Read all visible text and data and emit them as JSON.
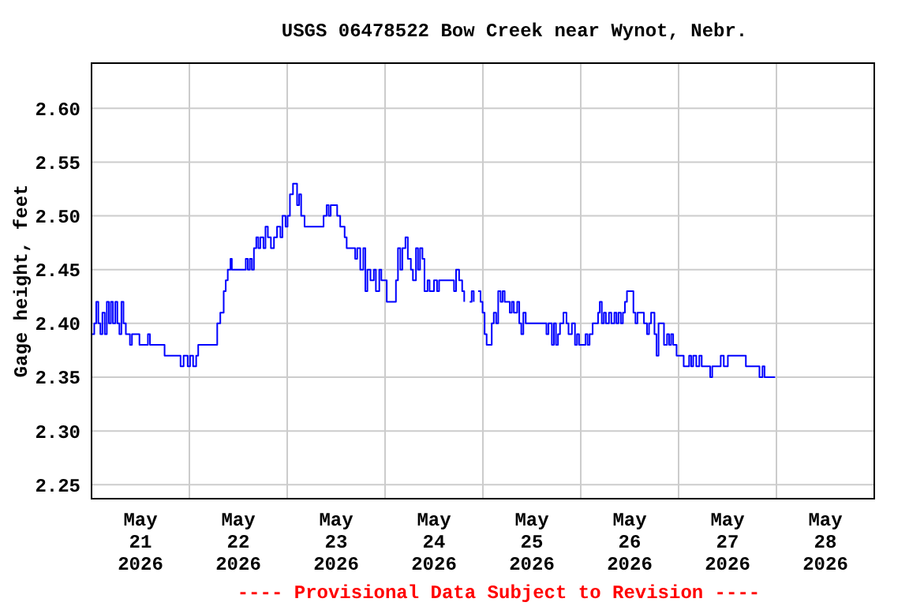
{
  "chart_data": {
    "type": "step",
    "title": "USGS 06478522 Bow Creek near Wynot, Nebr.",
    "ylabel": "Gage height, feet",
    "annotations": [
      "---- Provisional Data Subject to Revision ----"
    ],
    "xlim": [
      "2026-05-21T00:00",
      "2026-05-29T00:00"
    ],
    "xticks": [
      {
        "value": "2026-05-21T12:00",
        "label": "May\n21\n2026"
      },
      {
        "value": "2026-05-22T12:00",
        "label": "May\n22\n2026"
      },
      {
        "value": "2026-05-23T12:00",
        "label": "May\n23\n2026"
      },
      {
        "value": "2026-05-24T12:00",
        "label": "May\n24\n2026"
      },
      {
        "value": "2026-05-25T12:00",
        "label": "May\n25\n2026"
      },
      {
        "value": "2026-05-26T12:00",
        "label": "May\n26\n2026"
      },
      {
        "value": "2026-05-27T12:00",
        "label": "May\n27\n2026"
      },
      {
        "value": "2026-05-28T12:00",
        "label": "May\n28\n2026"
      },
      {
        "value": "2026-05-22T00:00",
        "label": null
      },
      {
        "value": "2026-05-23T00:00",
        "label": null
      },
      {
        "value": "2026-05-24T00:00",
        "label": null
      },
      {
        "value": "2026-05-25T00:00",
        "label": null
      },
      {
        "value": "2026-05-26T00:00",
        "label": null
      },
      {
        "value": "2026-05-27T00:00",
        "label": null
      },
      {
        "value": "2026-05-28T00:00",
        "label": null
      }
    ],
    "ylim": [
      2.237,
      2.642
    ],
    "yticks": [
      {
        "value": 2.25,
        "label": "2.25"
      },
      {
        "value": 2.3,
        "label": "2.30"
      },
      {
        "value": 2.35,
        "label": "2.35"
      },
      {
        "value": 2.4,
        "label": "2.40"
      },
      {
        "value": 2.45,
        "label": "2.45"
      },
      {
        "value": 2.5,
        "label": "2.50"
      },
      {
        "value": 2.55,
        "label": "2.55"
      },
      {
        "value": 2.6,
        "label": "2.60"
      }
    ],
    "grid": true,
    "x": [
      "2026-05-21T00:00",
      "2026-05-21T00:40",
      "2026-05-21T01:10",
      "2026-05-21T01:40",
      "2026-05-21T02:10",
      "2026-05-21T02:40",
      "2026-05-21T03:15",
      "2026-05-21T03:45",
      "2026-05-21T04:15",
      "2026-05-21T04:45",
      "2026-05-21T05:15",
      "2026-05-21T05:50",
      "2026-05-21T06:20",
      "2026-05-21T06:50",
      "2026-05-21T07:20",
      "2026-05-21T07:50",
      "2026-05-21T08:25",
      "2026-05-21T09:25",
      "2026-05-21T09:55",
      "2026-05-21T11:45",
      "2026-05-21T13:50",
      "2026-05-21T14:20",
      "2026-05-21T17:55",
      "2026-05-21T21:50",
      "2026-05-21T22:35",
      "2026-05-21T23:35",
      "2026-05-22T00:10",
      "2026-05-22T00:55",
      "2026-05-22T01:40",
      "2026-05-22T02:10",
      "2026-05-22T06:20",
      "2026-05-22T06:50",
      "2026-05-22T07:35",
      "2026-05-22T08:25",
      "2026-05-22T08:55",
      "2026-05-22T09:25",
      "2026-05-22T10:05",
      "2026-05-22T10:25",
      "2026-05-22T13:50",
      "2026-05-22T14:20",
      "2026-05-22T14:50",
      "2026-05-22T15:20",
      "2026-05-22T15:50",
      "2026-05-22T16:25",
      "2026-05-22T16:55",
      "2026-05-22T17:25",
      "2026-05-22T18:10",
      "2026-05-22T18:40",
      "2026-05-22T19:15",
      "2026-05-22T20:00",
      "2026-05-22T20:45",
      "2026-05-22T21:30",
      "2026-05-22T22:20",
      "2026-05-22T22:50",
      "2026-05-22T23:35",
      "2026-05-23T00:05",
      "2026-05-23T00:40",
      "2026-05-23T01:25",
      "2026-05-23T02:25",
      "2026-05-23T02:55",
      "2026-05-23T03:25",
      "2026-05-23T04:15",
      "2026-05-23T08:20",
      "2026-05-23T08:55",
      "2026-05-23T09:40",
      "2026-05-23T10:10",
      "2026-05-23T10:40",
      "2026-05-23T12:15",
      "2026-05-23T13:00",
      "2026-05-23T14:05",
      "2026-05-23T14:35",
      "2026-05-23T16:40",
      "2026-05-23T17:10",
      "2026-05-23T17:55",
      "2026-05-23T18:40",
      "2026-05-23T19:10",
      "2026-05-23T19:40",
      "2026-05-23T20:25",
      "2026-05-23T21:15",
      "2026-05-23T21:45",
      "2026-05-23T22:35",
      "2026-05-23T23:05",
      "2026-05-24T00:25",
      "2026-05-24T02:10",
      "2026-05-24T02:40",
      "2026-05-24T03:10",
      "2026-05-24T03:45",
      "2026-05-24T04:15",
      "2026-05-24T05:00",
      "2026-05-24T05:35",
      "2026-05-24T06:20",
      "2026-05-24T06:50",
      "2026-05-24T07:35",
      "2026-05-24T08:05",
      "2026-05-24T08:35",
      "2026-05-24T09:10",
      "2026-05-24T09:40",
      "2026-05-24T10:25",
      "2026-05-24T10:55",
      "2026-05-24T12:00",
      "2026-05-24T12:45",
      "2026-05-24T13:15",
      "2026-05-24T16:55",
      "2026-05-24T17:25",
      "2026-05-24T18:10",
      "2026-05-24T18:55",
      "2026-05-24T19:25",
      "2026-05-24T19:55",
      "2026-05-24T20:45",
      "2026-05-24T21:15",
      "2026-05-24T21:45",
      "2026-05-24T22:15",
      "2026-05-24T22:50",
      "2026-05-24T23:25",
      "2026-05-24T23:55",
      "2026-05-25T00:25",
      "2026-05-25T00:55",
      "2026-05-25T01:25",
      "2026-05-25T02:10",
      "2026-05-25T02:40",
      "2026-05-25T03:15",
      "2026-05-25T03:45",
      "2026-05-25T04:20",
      "2026-05-25T04:50",
      "2026-05-25T05:20",
      "2026-05-25T06:05",
      "2026-05-25T06:35",
      "2026-05-25T07:05",
      "2026-05-25T07:35",
      "2026-05-25T08:25",
      "2026-05-25T08:55",
      "2026-05-25T09:25",
      "2026-05-25T09:55",
      "2026-05-25T10:30",
      "2026-05-25T15:05",
      "2026-05-25T15:35",
      "2026-05-25T16:05",
      "2026-05-25T16:55",
      "2026-05-25T17:25",
      "2026-05-25T17:55",
      "2026-05-25T18:25",
      "2026-05-25T18:55",
      "2026-05-25T19:45",
      "2026-05-25T20:30",
      "2026-05-25T21:00",
      "2026-05-25T21:50",
      "2026-05-25T22:35",
      "2026-05-25T23:05",
      "2026-05-25T23:35",
      "2026-05-26T01:10",
      "2026-05-26T01:40",
      "2026-05-26T02:10",
      "2026-05-26T02:55",
      "2026-05-26T04:15",
      "2026-05-26T04:40",
      "2026-05-26T05:10",
      "2026-05-26T05:40",
      "2026-05-26T06:10",
      "2026-05-26T06:55",
      "2026-05-26T07:30",
      "2026-05-26T08:15",
      "2026-05-26T08:45",
      "2026-05-26T09:15",
      "2026-05-26T09:50",
      "2026-05-26T10:20",
      "2026-05-26T10:50",
      "2026-05-26T11:20",
      "2026-05-26T12:55",
      "2026-05-26T13:25",
      "2026-05-26T13:55",
      "2026-05-26T15:30",
      "2026-05-26T16:15",
      "2026-05-26T16:45",
      "2026-05-26T17:15",
      "2026-05-26T18:05",
      "2026-05-26T18:35",
      "2026-05-26T19:05",
      "2026-05-26T20:25",
      "2026-05-26T21:10",
      "2026-05-26T21:40",
      "2026-05-26T22:10",
      "2026-05-26T22:40",
      "2026-05-26T23:30",
      "2026-05-27T01:15",
      "2026-05-27T02:35",
      "2026-05-27T03:05",
      "2026-05-27T03:35",
      "2026-05-27T04:20",
      "2026-05-27T05:05",
      "2026-05-27T05:40",
      "2026-05-27T07:45",
      "2026-05-27T08:15",
      "2026-05-27T10:20",
      "2026-05-27T11:05",
      "2026-05-27T12:05",
      "2026-05-27T16:30",
      "2026-05-27T19:50",
      "2026-05-27T20:35",
      "2026-05-27T21:05",
      "2026-05-27T23:40"
    ],
    "series": [
      {
        "color": "#0000ff",
        "values": [
          2.39,
          2.4,
          2.42,
          2.4,
          2.39,
          2.41,
          2.39,
          2.42,
          2.4,
          2.42,
          2.4,
          2.42,
          2.4,
          2.39,
          2.42,
          2.4,
          2.39,
          2.38,
          2.39,
          2.38,
          2.39,
          2.38,
          2.37,
          2.36,
          2.37,
          2.36,
          2.37,
          2.36,
          2.37,
          2.38,
          2.38,
          2.4,
          2.41,
          2.43,
          2.44,
          2.45,
          2.46,
          2.45,
          2.46,
          2.45,
          2.46,
          2.45,
          2.47,
          2.48,
          2.47,
          2.48,
          2.47,
          2.49,
          2.48,
          2.47,
          2.48,
          2.49,
          2.48,
          2.5,
          2.49,
          2.5,
          2.52,
          2.53,
          2.51,
          2.52,
          2.5,
          2.49,
          2.49,
          2.5,
          2.51,
          2.5,
          2.51,
          2.5,
          2.49,
          2.48,
          2.47,
          2.46,
          2.47,
          2.45,
          2.47,
          2.43,
          2.45,
          2.44,
          2.45,
          2.43,
          2.45,
          2.44,
          2.42,
          2.42,
          2.44,
          2.47,
          2.45,
          2.47,
          2.48,
          2.46,
          2.45,
          2.44,
          2.47,
          2.45,
          2.47,
          2.46,
          2.43,
          2.44,
          2.43,
          2.44,
          2.43,
          2.44,
          2.43,
          2.45,
          2.44,
          2.43,
          2.42,
          null,
          2.42,
          2.43,
          2.42,
          null,
          2.43,
          2.42,
          2.41,
          2.39,
          2.38,
          2.38,
          2.4,
          2.41,
          2.4,
          2.43,
          2.42,
          2.43,
          2.42,
          2.42,
          2.41,
          2.42,
          2.41,
          2.42,
          2.4,
          2.39,
          2.41,
          2.4,
          2.4,
          2.39,
          2.4,
          2.38,
          2.4,
          2.38,
          2.39,
          2.4,
          2.41,
          2.4,
          2.39,
          2.4,
          2.38,
          2.39,
          2.38,
          2.39,
          2.38,
          2.39,
          2.4,
          2.41,
          2.42,
          2.4,
          2.41,
          2.4,
          2.41,
          2.4,
          2.41,
          2.4,
          2.41,
          2.4,
          2.41,
          2.42,
          2.43,
          2.41,
          2.4,
          2.41,
          2.4,
          2.39,
          2.4,
          2.41,
          2.39,
          2.37,
          2.4,
          2.38,
          2.39,
          2.38,
          2.39,
          2.38,
          2.37,
          2.36,
          2.37,
          2.36,
          2.37,
          2.36,
          2.37,
          2.36,
          2.35,
          2.36,
          2.37,
          2.36,
          2.37,
          2.36,
          2.35,
          2.36,
          2.35,
          2.35
        ]
      }
    ]
  }
}
